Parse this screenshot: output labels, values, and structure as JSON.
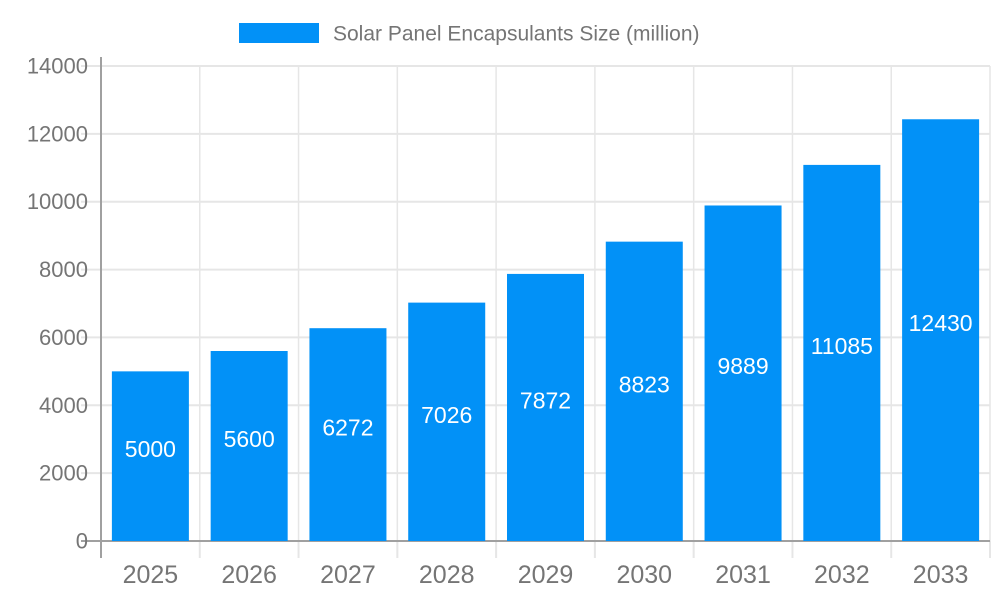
{
  "chart_data": {
    "type": "bar",
    "title": "Solar Panel Encapsulants Size (million)",
    "categories": [
      "2025",
      "2026",
      "2027",
      "2028",
      "2029",
      "2030",
      "2031",
      "2032",
      "2033"
    ],
    "series": [
      {
        "name": "Solar Panel Encapsulants Size (million)",
        "values": [
          5000,
          5600,
          6272,
          7026,
          7872,
          8823,
          9889,
          11085,
          12430
        ]
      }
    ],
    "xlabel": "",
    "ylabel": "",
    "ylim": [
      0,
      14000
    ],
    "yticks": [
      0,
      2000,
      4000,
      6000,
      8000,
      10000,
      12000,
      14000
    ],
    "grid": true,
    "legend_position": "top-center",
    "data_labels_position": "inside-center"
  },
  "colors": {
    "bar": "#0291F7",
    "gridline": "#E6E6E6",
    "axis": "#A0A0A0",
    "text": "#757575",
    "bar_label": "#FFFFFF",
    "background": "#FFFFFF"
  }
}
